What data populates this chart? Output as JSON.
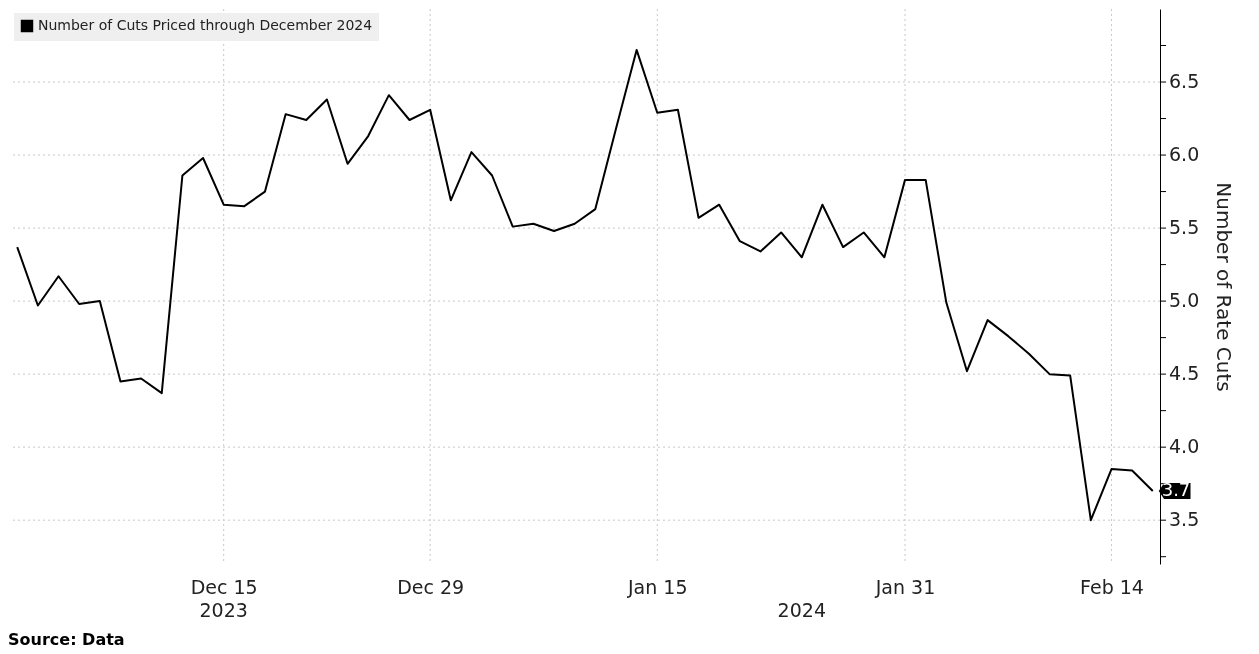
{
  "chart_data": {
    "type": "line",
    "categories": [
      null,
      null,
      null,
      null,
      null,
      null,
      null,
      null,
      null,
      null,
      "Dec 15",
      null,
      null,
      null,
      null,
      null,
      null,
      null,
      null,
      null,
      "Dec 29",
      null,
      null,
      null,
      null,
      null,
      null,
      null,
      null,
      null,
      null,
      "Jan 15",
      null,
      null,
      null,
      null,
      null,
      null,
      null,
      null,
      null,
      null,
      null,
      "Jan 31",
      null,
      null,
      null,
      null,
      null,
      null,
      null,
      null,
      null,
      "Feb 14",
      null,
      null
    ],
    "series": [
      {
        "name": "Number of Cuts Priced through December 2024",
        "color": "#000000",
        "values": [
          5.37,
          4.97,
          5.17,
          4.98,
          5.0,
          4.45,
          4.47,
          4.37,
          5.86,
          5.98,
          5.66,
          5.65,
          5.75,
          6.28,
          6.24,
          6.38,
          5.94,
          6.13,
          6.41,
          6.24,
          6.31,
          5.69,
          6.02,
          5.86,
          5.51,
          5.53,
          5.48,
          5.53,
          5.63,
          6.18,
          6.72,
          6.29,
          6.31,
          5.57,
          5.66,
          5.41,
          5.34,
          5.47,
          5.3,
          5.66,
          5.37,
          5.47,
          5.3,
          5.83,
          5.83,
          4.99,
          4.52,
          4.87,
          4.76,
          4.64,
          4.5,
          4.49,
          3.5,
          3.85,
          3.84,
          3.7
        ],
        "value_labels": [
          null,
          null,
          null,
          null,
          null,
          null,
          null,
          null,
          null,
          null,
          null,
          null,
          null,
          null,
          null,
          null,
          null,
          null,
          null,
          null,
          null,
          null,
          null,
          null,
          null,
          null,
          null,
          null,
          null,
          null,
          null,
          null,
          null,
          null,
          null,
          null,
          null,
          null,
          null,
          null,
          null,
          null,
          null,
          null,
          null,
          null,
          null,
          null,
          null,
          null,
          null,
          null,
          null,
          null,
          null,
          "3.7"
        ]
      }
    ],
    "ylabel": "Number of Rate Cuts",
    "ylim": [
      3.2,
      7.0
    ],
    "yticks": [
      {
        "value": 3.25,
        "label": null
      },
      3.5,
      {
        "value": 3.75,
        "label": null
      },
      {
        "value": 4,
        "label": "4.0"
      },
      {
        "value": 4.25,
        "label": null
      },
      4.5,
      {
        "value": 4.75,
        "label": null
      },
      {
        "value": 5,
        "label": "5.0"
      },
      {
        "value": 5.25,
        "label": null
      },
      5.5,
      {
        "value": 5.75,
        "label": null
      },
      {
        "value": 6,
        "label": "6.0"
      },
      {
        "value": 6.25,
        "label": null
      },
      6.5,
      {
        "value": 6.75,
        "label": null
      }
    ],
    "grid": true,
    "legend": "top left",
    "marker": "none",
    "line_style": "solid",
    "annotations": [
      "2023",
      "2024",
      "Source: Data"
    ]
  }
}
